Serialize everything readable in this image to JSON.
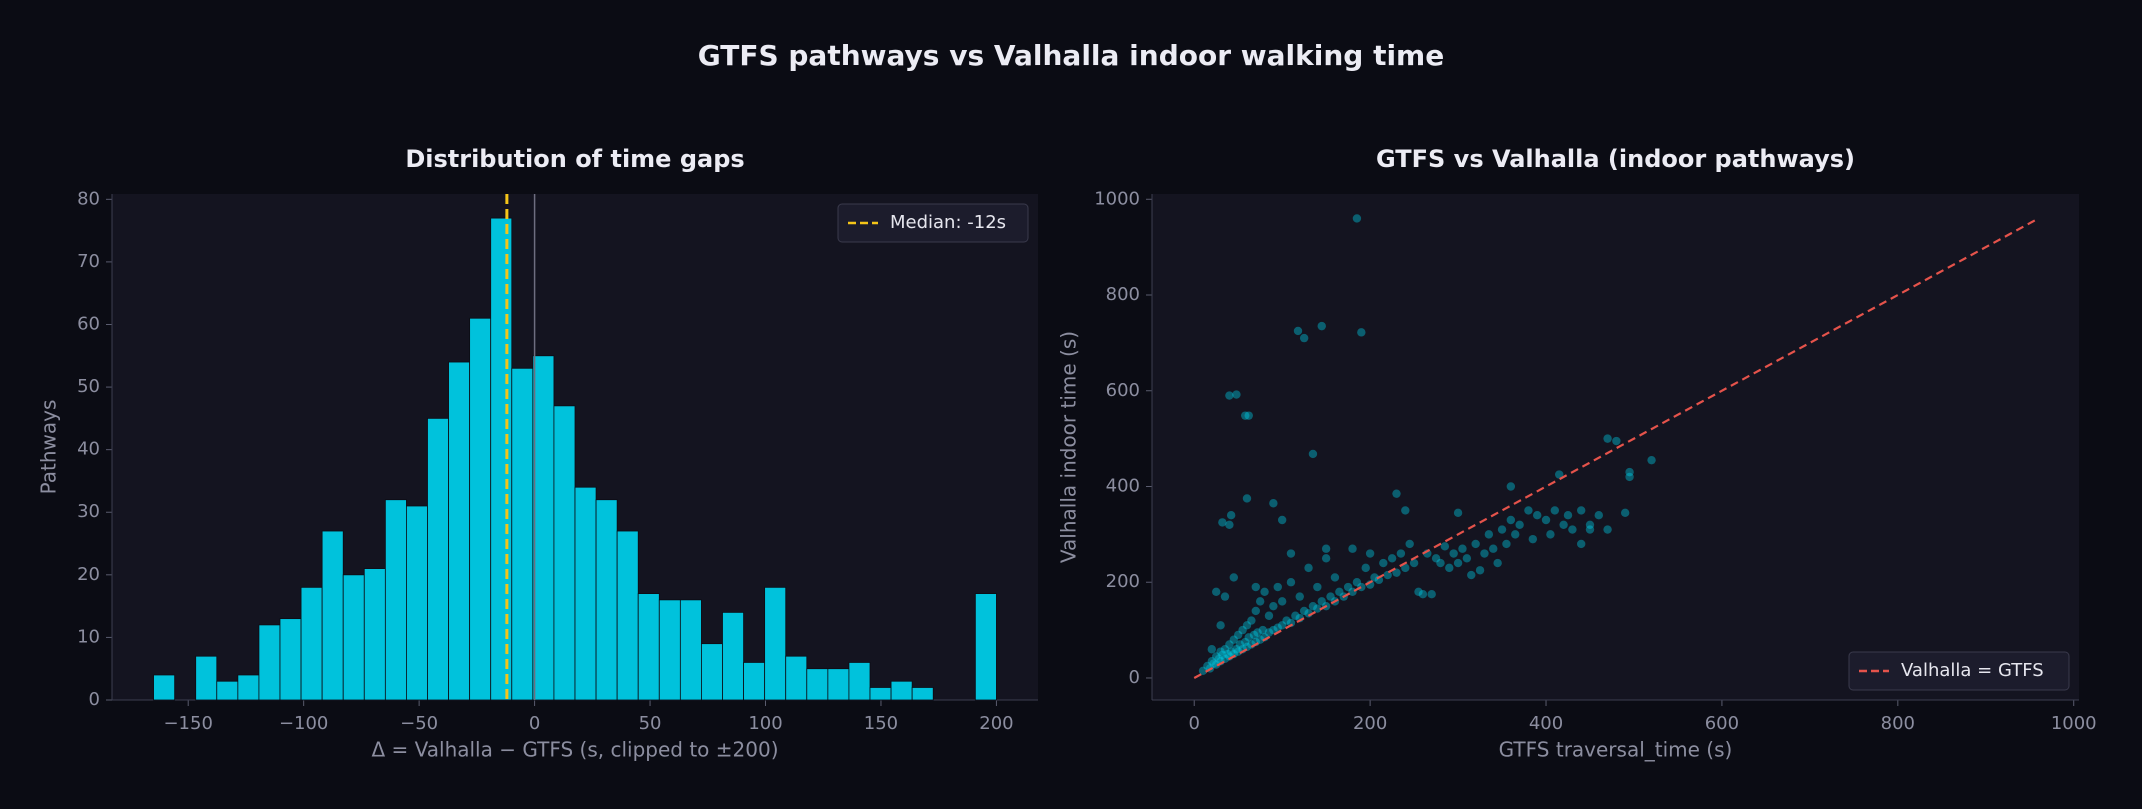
{
  "title": "GTFS pathways vs Valhalla indoor walking time",
  "chart_data": [
    {
      "type": "histogram",
      "title": "Distribution of time gaps",
      "x_label": "Δ = Valhalla − GTFS (s, clipped to ±200)",
      "y_label": "Pathways",
      "bins": [
        -165,
        -155.875,
        -146.75,
        -137.625,
        -128.5,
        -119.375,
        -110.25,
        -101.125,
        -92,
        -82.875,
        -73.75,
        -64.625,
        -55.5,
        -46.375,
        -37.25,
        -28.125,
        -19,
        -9.875,
        -0.75,
        8.375,
        17.5,
        26.625,
        35.75,
        44.875,
        54,
        63.125,
        72.25,
        81.375,
        90.5,
        99.625,
        108.75,
        117.875,
        127,
        136.125,
        145.25,
        154.375,
        163.5,
        172.625,
        181.75,
        190.875,
        200
      ],
      "values": [
        4,
        0,
        7,
        3,
        4,
        12,
        13,
        18,
        27,
        20,
        21,
        32,
        31,
        45,
        54,
        61,
        77,
        53,
        55,
        47,
        34,
        32,
        27,
        17,
        16,
        16,
        9,
        14,
        6,
        18,
        7,
        5,
        5,
        6,
        2,
        3,
        2,
        0,
        0,
        17
      ],
      "color": "#00c2dc",
      "reference_lines": [
        {
          "name": "Median: -12s",
          "x": -12,
          "color": "#f5c518",
          "style": "dashed"
        },
        {
          "x": 0,
          "color": "#6e6e80",
          "style": "solid"
        }
      ],
      "legend": "upper right",
      "xlim": [
        -183,
        218
      ],
      "xticks": [
        {
          "value": -150,
          "label": "−150"
        },
        {
          "value": -100,
          "label": "−100"
        },
        {
          "value": -50,
          "label": "−50"
        },
        0,
        50,
        100,
        150,
        200
      ],
      "ylim": [
        0,
        80.85
      ],
      "yticks": [
        0,
        10,
        20,
        30,
        40,
        50,
        60,
        70,
        80
      ]
    },
    {
      "type": "scatter",
      "title": "GTFS vs Valhalla (indoor pathways)",
      "x_label": "GTFS traversal_time (s)",
      "y_label": "Valhalla indoor time (s)",
      "points": {
        "color": "#00c8e0",
        "x": [
          10,
          15,
          18,
          20,
          22,
          25,
          25,
          28,
          30,
          30,
          32,
          35,
          35,
          38,
          40,
          40,
          42,
          45,
          45,
          48,
          50,
          50,
          52,
          55,
          55,
          58,
          60,
          60,
          62,
          65,
          65,
          68,
          70,
          70,
          72,
          75,
          75,
          78,
          80,
          80,
          85,
          85,
          90,
          90,
          95,
          95,
          100,
          100,
          105,
          110,
          110,
          115,
          120,
          120,
          125,
          130,
          130,
          135,
          140,
          140,
          145,
          150,
          150,
          155,
          160,
          160,
          165,
          170,
          175,
          180,
          180,
          185,
          190,
          195,
          200,
          200,
          205,
          210,
          215,
          220,
          225,
          230,
          235,
          240,
          245,
          250,
          255,
          260,
          265,
          270,
          275,
          280,
          285,
          290,
          295,
          300,
          305,
          310,
          315,
          320,
          325,
          330,
          335,
          340,
          345,
          350,
          355,
          360,
          365,
          370,
          380,
          385,
          390,
          400,
          405,
          410,
          420,
          425,
          430,
          440,
          450,
          460,
          25,
          35,
          45,
          70,
          110,
          150,
          30,
          20,
          185,
          118,
          125,
          145,
          190,
          40,
          48,
          58,
          62,
          135,
          32,
          40,
          42,
          60,
          90,
          100,
          230,
          240,
          300,
          360,
          415,
          470,
          480,
          495,
          495,
          520,
          490,
          450,
          470,
          440
        ],
        "y": [
          15,
          25,
          20,
          35,
          30,
          28,
          45,
          40,
          35,
          55,
          48,
          40,
          60,
          50,
          45,
          70,
          55,
          50,
          80,
          60,
          55,
          90,
          70,
          60,
          100,
          75,
          65,
          110,
          85,
          70,
          120,
          90,
          75,
          140,
          95,
          80,
          160,
          100,
          85,
          180,
          95,
          130,
          100,
          150,
          105,
          190,
          110,
          160,
          120,
          115,
          200,
          130,
          125,
          170,
          140,
          135,
          230,
          150,
          145,
          190,
          160,
          150,
          250,
          170,
          160,
          210,
          180,
          170,
          190,
          180,
          270,
          200,
          190,
          230,
          195,
          260,
          210,
          205,
          240,
          215,
          250,
          220,
          260,
          230,
          280,
          240,
          180,
          175,
          260,
          175,
          250,
          240,
          275,
          230,
          260,
          240,
          270,
          250,
          215,
          280,
          225,
          260,
          300,
          270,
          240,
          310,
          280,
          330,
          300,
          320,
          350,
          290,
          340,
          330,
          300,
          350,
          320,
          340,
          310,
          350,
          320,
          340,
          180,
          170,
          210,
          190,
          260,
          270,
          110,
          60,
          960,
          725,
          710,
          735,
          722,
          590,
          592,
          548,
          548,
          468,
          325,
          320,
          340,
          375,
          365,
          330,
          385,
          350,
          345,
          400,
          425,
          500,
          495,
          430,
          420,
          455,
          345,
          310,
          310,
          280
        ]
      },
      "reference_line": {
        "name": "Valhalla = GTFS",
        "x": [
          0,
          960
        ],
        "y": [
          0,
          960
        ],
        "color": "#e5534b",
        "style": "dashed"
      },
      "legend": "lower right",
      "xlim": [
        -48,
        1006
      ],
      "xticks": [
        0,
        200,
        400,
        600,
        800,
        1000
      ],
      "ylim": [
        -46,
        1011
      ],
      "yticks": [
        0,
        200,
        400,
        600,
        800,
        1000
      ]
    }
  ]
}
